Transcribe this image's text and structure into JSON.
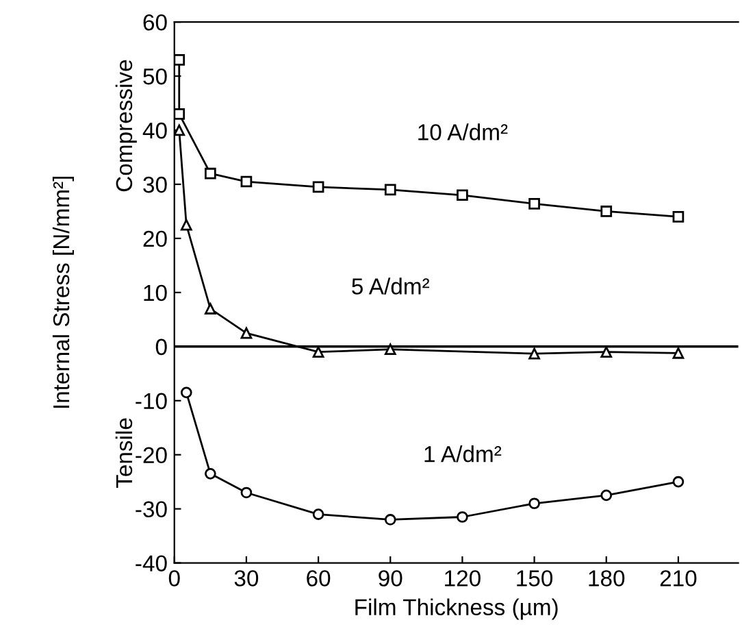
{
  "chart_data": {
    "type": "line",
    "xlabel": "Film Thickness (µm)",
    "ylabel": "Internal Stress [N/mm²]",
    "xlim": [
      0,
      235
    ],
    "ylim": [
      -40,
      60
    ],
    "xticks": [
      0,
      30,
      60,
      90,
      120,
      150,
      180,
      210
    ],
    "yticks": [
      -40,
      -30,
      -20,
      -10,
      0,
      10,
      20,
      30,
      40,
      50,
      60
    ],
    "grid": false,
    "legend": false,
    "line_style": "solid",
    "series": [
      {
        "name": "10 A/dm²",
        "color": "#000000",
        "marker": "square",
        "x": [
          2,
          2,
          15,
          30,
          60,
          90,
          120,
          150,
          180,
          210
        ],
        "values": [
          53,
          43,
          32,
          30.5,
          29.5,
          29,
          28,
          26.4,
          25,
          24
        ]
      },
      {
        "name": "5 A/dm²",
        "color": "#000000",
        "marker": "triangle",
        "x": [
          2,
          5,
          15,
          30,
          60,
          90,
          150,
          180,
          210
        ],
        "values": [
          40,
          22.5,
          7,
          2.5,
          -1,
          -0.5,
          -1.3,
          -1,
          -1.2
        ]
      },
      {
        "name": "1 A/dm²",
        "color": "#000000",
        "marker": "circle",
        "x": [
          5,
          15,
          30,
          60,
          90,
          120,
          150,
          180,
          210
        ],
        "values": [
          -8.5,
          -23.5,
          -27,
          -31,
          -32,
          -31.5,
          -29,
          -27.5,
          -25
        ]
      }
    ],
    "ref_lines": [
      {
        "axis": "y",
        "value": 0,
        "color": "#000000"
      }
    ],
    "annotations": [
      "Compressive",
      "Tensile"
    ]
  }
}
